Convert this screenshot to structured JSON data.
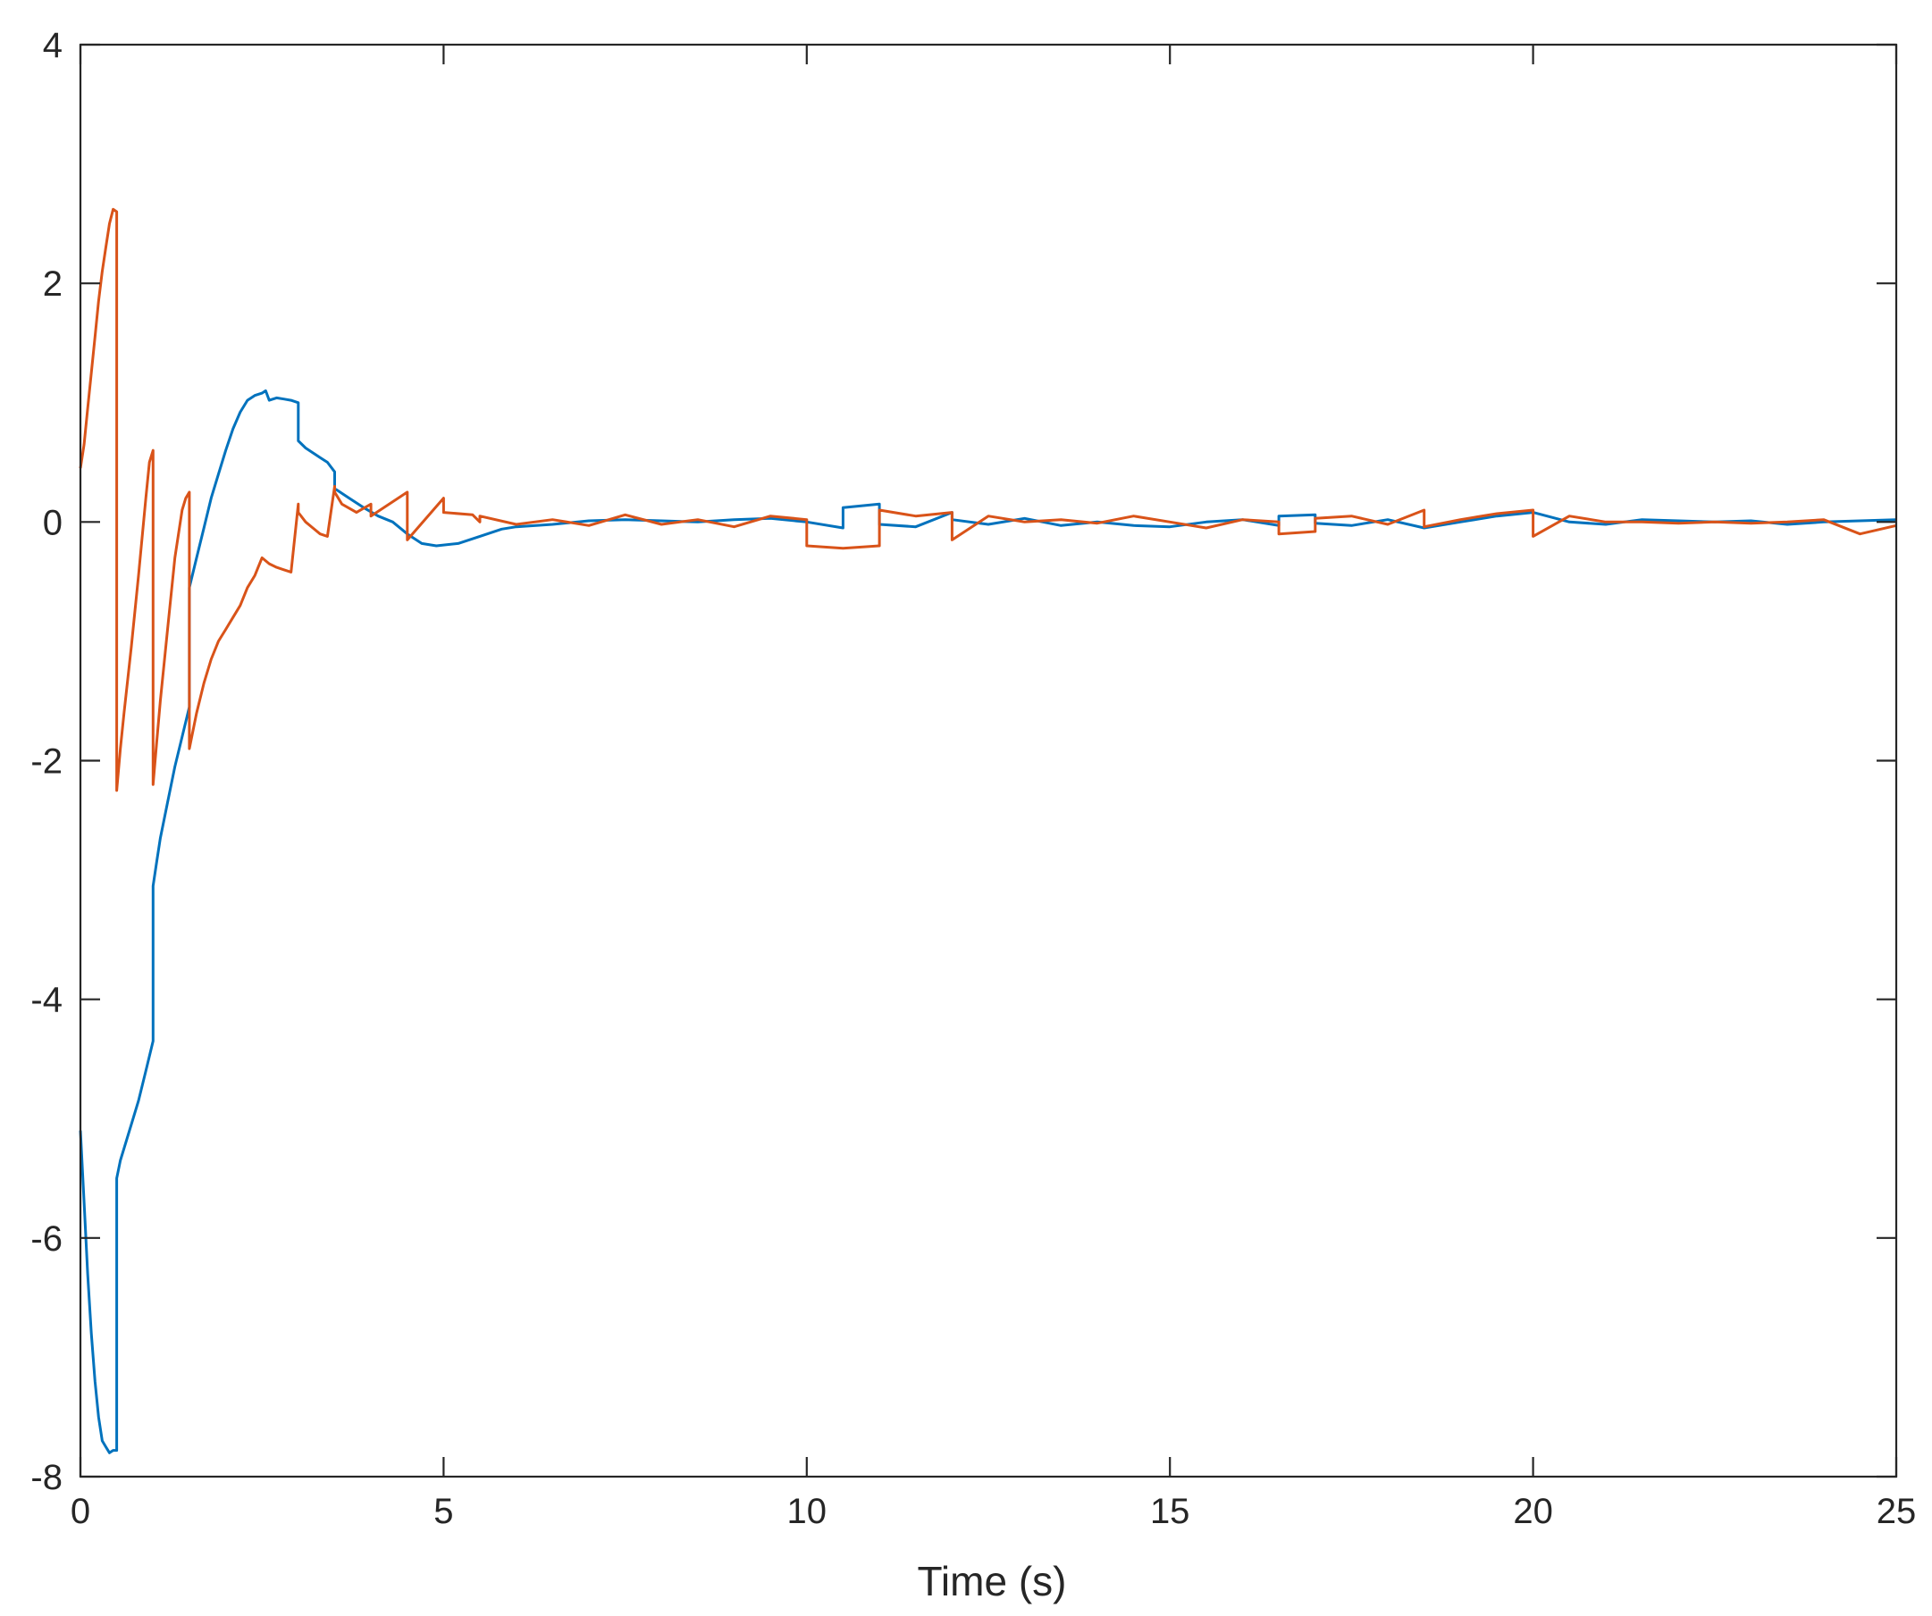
{
  "chart_data": {
    "type": "line",
    "title": "",
    "xlabel": "Time (s)",
    "ylabel": "",
    "xlim": [
      0,
      25
    ],
    "ylim": [
      -8,
      4
    ],
    "xticks": [
      0,
      5,
      10,
      15,
      20,
      25
    ],
    "yticks": [
      -8,
      -6,
      -4,
      -2,
      0,
      2,
      4
    ],
    "xtick_labels": [
      "0",
      "5",
      "10",
      "15",
      "20",
      "25"
    ],
    "ytick_labels": [
      "-8",
      "-6",
      "-4",
      "-2",
      "0",
      "2",
      "4"
    ],
    "grid": false,
    "legend": "none",
    "series": [
      {
        "color": "#0072bd",
        "x": [
          0,
          0.05,
          0.1,
          0.15,
          0.2,
          0.25,
          0.3,
          0.35,
          0.4,
          0.45,
          0.5,
          0.5,
          0.55,
          0.6,
          0.7,
          0.8,
          0.9,
          1.0,
          1.0,
          1.05,
          1.1,
          1.2,
          1.3,
          1.4,
          1.5,
          1.5,
          1.6,
          1.7,
          1.8,
          1.9,
          2.0,
          2.1,
          2.2,
          2.3,
          2.4,
          2.5,
          2.55,
          2.6,
          2.7,
          2.8,
          2.9,
          3.0,
          3.0,
          3.1,
          3.2,
          3.3,
          3.4,
          3.5,
          3.5,
          3.7,
          3.9,
          4.1,
          4.3,
          4.5,
          4.7,
          4.9,
          5.2,
          5.5,
          5.8,
          6.0,
          6.5,
          7.0,
          7.5,
          8.0,
          8.5,
          9.0,
          9.5,
          10.0,
          10.5,
          10.5,
          11.0,
          11.0,
          11.5,
          12.0,
          12.0,
          12.5,
          13.0,
          13.5,
          14.0,
          14.5,
          15.0,
          15.5,
          16.0,
          16.5,
          16.5,
          17.0,
          17.0,
          17.5,
          18.0,
          18.5,
          19.0,
          19.5,
          20.0,
          20.5,
          21.0,
          21.5,
          22.0,
          22.5,
          23.0,
          23.5,
          24.0,
          24.5,
          25.0
        ],
        "y": [
          -5.1,
          -5.7,
          -6.3,
          -6.8,
          -7.2,
          -7.5,
          -7.7,
          -7.75,
          -7.8,
          -7.78,
          -7.78,
          -5.5,
          -5.35,
          -5.25,
          -5.05,
          -4.85,
          -4.6,
          -4.35,
          -3.05,
          -2.85,
          -2.65,
          -2.35,
          -2.05,
          -1.8,
          -1.55,
          -0.55,
          -0.3,
          -0.05,
          0.2,
          0.4,
          0.6,
          0.78,
          0.92,
          1.02,
          1.06,
          1.08,
          1.1,
          1.02,
          1.04,
          1.03,
          1.02,
          1.0,
          0.68,
          0.62,
          0.58,
          0.54,
          0.5,
          0.42,
          0.28,
          0.2,
          0.12,
          0.05,
          0.0,
          -0.1,
          -0.18,
          -0.2,
          -0.18,
          -0.12,
          -0.06,
          -0.04,
          -0.02,
          0.01,
          0.02,
          0.01,
          0.0,
          0.02,
          0.03,
          0.0,
          -0.05,
          0.12,
          0.15,
          -0.02,
          -0.04,
          0.08,
          0.02,
          -0.02,
          0.03,
          -0.03,
          0.0,
          -0.03,
          -0.04,
          0.0,
          0.02,
          -0.03,
          0.05,
          0.06,
          -0.01,
          -0.03,
          0.02,
          -0.05,
          0.0,
          0.05,
          0.08,
          0.0,
          -0.02,
          0.02,
          0.01,
          0.0,
          0.01,
          -0.02,
          0.0,
          0.01,
          0.02
        ]
      },
      {
        "color": "#d95319",
        "x": [
          0,
          0.05,
          0.1,
          0.15,
          0.2,
          0.25,
          0.3,
          0.35,
          0.4,
          0.45,
          0.5,
          0.5,
          0.55,
          0.6,
          0.7,
          0.8,
          0.9,
          0.95,
          1.0,
          1.0,
          1.05,
          1.1,
          1.2,
          1.3,
          1.4,
          1.45,
          1.5,
          1.5,
          1.6,
          1.7,
          1.8,
          1.9,
          2.0,
          2.1,
          2.2,
          2.3,
          2.4,
          2.5,
          2.6,
          2.7,
          2.8,
          2.9,
          3.0,
          3.0,
          3.1,
          3.2,
          3.3,
          3.4,
          3.5,
          3.5,
          3.6,
          3.8,
          4.0,
          4.0,
          4.5,
          4.5,
          5.0,
          5.0,
          5.4,
          5.5,
          5.5,
          6.0,
          6.5,
          7.0,
          7.5,
          8.0,
          8.5,
          9.0,
          9.5,
          10.0,
          10.0,
          10.5,
          11.0,
          11.0,
          11.5,
          12.0,
          12.0,
          12.5,
          13.0,
          13.5,
          14.0,
          14.5,
          15.0,
          15.5,
          16.0,
          16.5,
          16.5,
          17.0,
          17.0,
          17.5,
          18.0,
          18.5,
          18.5,
          19.0,
          19.5,
          20.0,
          20.0,
          20.5,
          21.0,
          21.5,
          22.0,
          22.5,
          23.0,
          23.5,
          24.0,
          24.5,
          25.0
        ],
        "y": [
          0.45,
          0.65,
          0.95,
          1.25,
          1.55,
          1.85,
          2.1,
          2.3,
          2.5,
          2.62,
          2.6,
          -2.25,
          -1.9,
          -1.6,
          -1.05,
          -0.45,
          0.2,
          0.5,
          0.6,
          -2.2,
          -1.85,
          -1.5,
          -0.9,
          -0.3,
          0.1,
          0.2,
          0.25,
          -1.9,
          -1.6,
          -1.35,
          -1.15,
          -1.0,
          -0.9,
          -0.8,
          -0.7,
          -0.55,
          -0.45,
          -0.3,
          -0.35,
          -0.38,
          -0.4,
          -0.42,
          0.15,
          0.08,
          0.0,
          -0.05,
          -0.1,
          -0.12,
          0.3,
          0.25,
          0.15,
          0.08,
          0.15,
          0.05,
          0.25,
          -0.15,
          0.2,
          0.08,
          0.06,
          0.0,
          0.05,
          -0.02,
          0.02,
          -0.03,
          0.06,
          -0.02,
          0.02,
          -0.04,
          0.05,
          0.02,
          -0.2,
          -0.22,
          -0.2,
          0.1,
          0.05,
          0.08,
          -0.15,
          0.05,
          0.0,
          0.02,
          -0.01,
          0.05,
          0.0,
          -0.05,
          0.02,
          0.0,
          -0.1,
          -0.08,
          0.03,
          0.05,
          -0.02,
          0.1,
          -0.04,
          0.02,
          0.07,
          0.1,
          -0.12,
          0.05,
          0.0,
          0.0,
          -0.01,
          0.0,
          -0.01,
          0.0,
          0.02,
          -0.1,
          -0.03
        ]
      }
    ]
  }
}
